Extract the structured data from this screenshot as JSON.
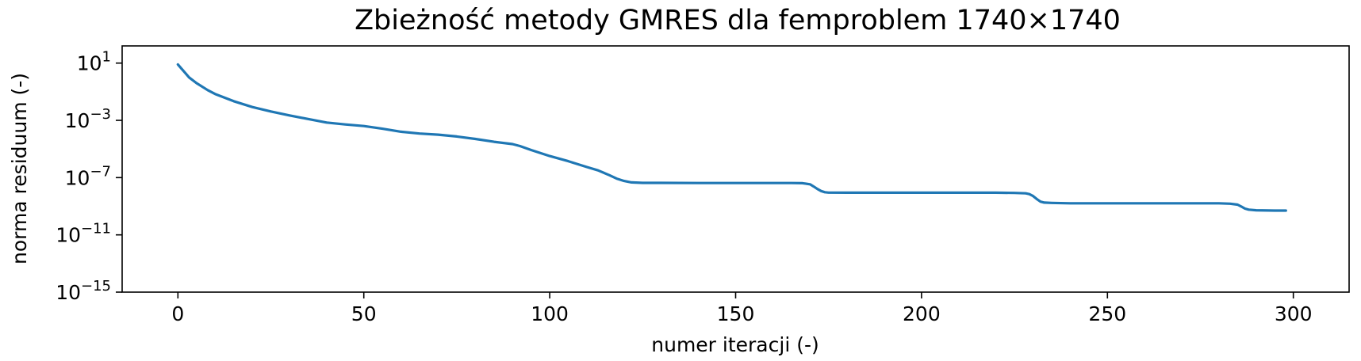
{
  "chart_data": {
    "type": "line",
    "title": "Zbieżność metody GMRES dla femproblem 1740×1740",
    "xlabel": "numer iteracji (-)",
    "ylabel": "norma residuum (-)",
    "xlim": [
      -15,
      315
    ],
    "ylim_exponent": [
      -15,
      2.2
    ],
    "yscale": "log",
    "grid": false,
    "x_ticks": [
      0,
      50,
      100,
      150,
      200,
      250,
      300
    ],
    "x_tick_labels": [
      "0",
      "50",
      "100",
      "150",
      "200",
      "250",
      "300"
    ],
    "y_tick_exponents": [
      1,
      -3,
      -7,
      -11,
      -15
    ],
    "y_tick_base": "10",
    "y_tick_exponent_labels": [
      "1",
      "−3",
      "−7",
      "−11",
      "−15"
    ],
    "series": [
      {
        "color": "#1f77b4",
        "x": [
          0,
          1,
          2,
          3,
          5,
          8,
          10,
          15,
          20,
          25,
          30,
          35,
          40,
          45,
          50,
          55,
          60,
          65,
          70,
          75,
          80,
          85,
          90,
          92,
          95,
          100,
          105,
          110,
          113,
          116,
          118,
          120,
          122,
          125,
          130,
          140,
          150,
          160,
          165,
          168,
          170,
          171,
          172,
          173,
          174,
          175,
          180,
          190,
          200,
          210,
          220,
          225,
          228,
          229,
          230,
          231,
          232,
          233,
          235,
          240,
          250,
          260,
          270,
          280,
          283,
          285,
          286,
          287,
          288,
          290,
          295,
          298
        ],
        "y": [
          8.0,
          4.0,
          2.0,
          1.0,
          0.4,
          0.13,
          0.07,
          0.022,
          0.0085,
          0.0042,
          0.0022,
          0.00125,
          0.0007,
          0.00052,
          0.0004,
          0.00026,
          0.00016,
          0.00012,
          0.0001,
          7.5e-05,
          5e-05,
          3.2e-05,
          2.2e-05,
          1.6e-05,
          8.5e-06,
          3.2e-06,
          1.4e-06,
          5.5e-07,
          3.2e-07,
          1.5e-07,
          8.5e-08,
          5.8e-08,
          4.6e-08,
          4.3e-08,
          4.3e-08,
          4.2e-08,
          4.2e-08,
          4.2e-08,
          4.2e-08,
          4.1e-08,
          3.4e-08,
          2.4e-08,
          1.6e-08,
          1.15e-08,
          9.5e-09,
          9e-09,
          8.8e-09,
          8.8e-09,
          8.8e-09,
          8.8e-09,
          8.8e-09,
          8.5e-09,
          8e-09,
          7e-09,
          5.2e-09,
          3.2e-09,
          2.1e-09,
          1.8e-09,
          1.7e-09,
          1.6e-09,
          1.6e-09,
          1.6e-09,
          1.6e-09,
          1.6e-09,
          1.5e-09,
          1.3e-09,
          9.5e-10,
          6.8e-10,
          5.8e-10,
          5.2e-10,
          5e-10,
          5e-10
        ]
      }
    ]
  }
}
